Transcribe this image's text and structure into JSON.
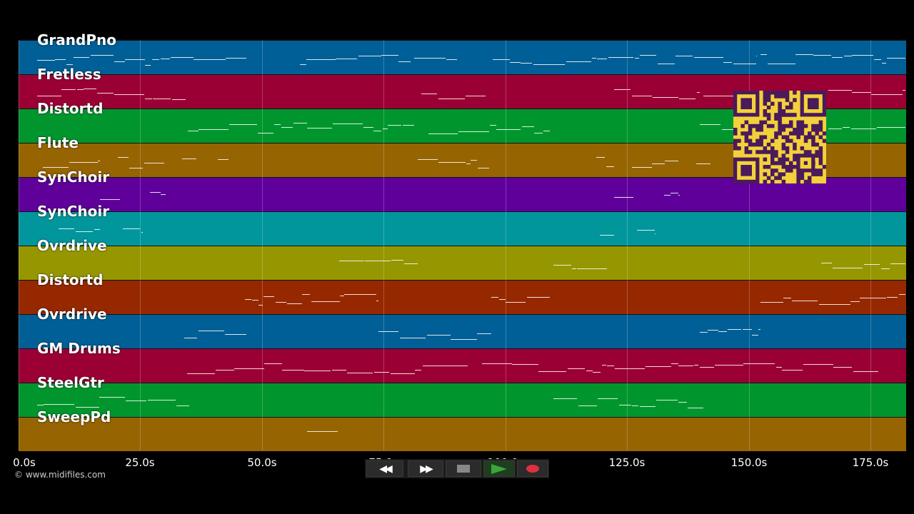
{
  "tracks": [
    {
      "name": "GrandPno",
      "color": "#005f96"
    },
    {
      "name": "Fretless",
      "color": "#9b0035"
    },
    {
      "name": "Distortd",
      "color": "#00962d"
    },
    {
      "name": "Flute",
      "color": "#966400"
    },
    {
      "name": "SynChoir",
      "color": "#5f009b"
    },
    {
      "name": "SynChoir",
      "color": "#00969b"
    },
    {
      "name": "Ovrdrive",
      "color": "#969600"
    },
    {
      "name": "Distortd",
      "color": "#962800"
    },
    {
      "name": "Ovrdrive",
      "color": "#005f96"
    },
    {
      "name": "GM Drums",
      "color": "#9b0035"
    },
    {
      "name": "SteelGtr",
      "color": "#00962d"
    },
    {
      "name": "SweepPd",
      "color": "#966400"
    }
  ],
  "timeline": {
    "ticks": [
      "0.0s",
      "25.0s",
      "50.0s",
      "75.0s",
      "100.0s",
      "125.0s",
      "150.0s",
      "175.0s"
    ]
  },
  "copyright": "© www.midifiles.com",
  "transport": {
    "rewind_icon": "rewind-icon",
    "forward_icon": "fast-forward-icon",
    "stop_icon": "stop-icon",
    "play_icon": "play-icon",
    "record_icon": "record-icon",
    "play_color": "#3aa63a",
    "record_color": "#e03040"
  },
  "qr_code": {
    "color": "#f2d13a",
    "module_color": "#4a1a5a"
  }
}
